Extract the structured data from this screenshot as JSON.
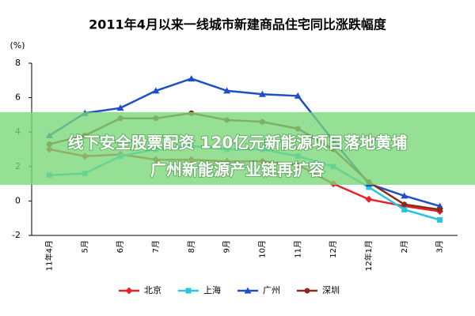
{
  "chart_data": {
    "type": "line",
    "title": "2011年4月以来一线城市新建商品住宅同比涨跌幅度",
    "y_label": "(%)",
    "categories": [
      "11年4月",
      "5月",
      "6月",
      "7月",
      "8月",
      "9月",
      "10月",
      "11月",
      "12月",
      "12年1月",
      "2月",
      "3月"
    ],
    "ylim": [
      -2,
      8
    ],
    "yticks": [
      -2,
      0,
      2,
      4,
      6,
      8
    ],
    "series": [
      {
        "name": "北京",
        "color": "#e8222a",
        "marker": "diamond",
        "values": [
          3.0,
          2.6,
          2.7,
          2.4,
          2.4,
          2.3,
          2.3,
          2.1,
          1.0,
          0.1,
          -0.3,
          -0.6
        ]
      },
      {
        "name": "上海",
        "color": "#26c6e0",
        "marker": "square",
        "values": [
          1.5,
          1.6,
          2.6,
          3.0,
          3.2,
          3.0,
          3.0,
          2.6,
          2.0,
          0.8,
          -0.5,
          -1.1
        ]
      },
      {
        "name": "广州",
        "color": "#1f4fc8",
        "marker": "triangle",
        "values": [
          3.8,
          5.1,
          5.4,
          6.4,
          7.1,
          6.4,
          6.2,
          6.1,
          3.5,
          1.0,
          0.3,
          -0.3
        ]
      },
      {
        "name": "深圳",
        "color": "#8a2a1a",
        "marker": "circle",
        "values": [
          3.3,
          3.8,
          4.8,
          4.8,
          5.1,
          4.7,
          4.6,
          4.2,
          3.0,
          1.1,
          -0.2,
          -0.5
        ]
      }
    ]
  },
  "overlay_text": [
    "线下安全股票配资 120亿元新能源项目落地黄埔",
    "广州新能源产业链再扩容"
  ]
}
